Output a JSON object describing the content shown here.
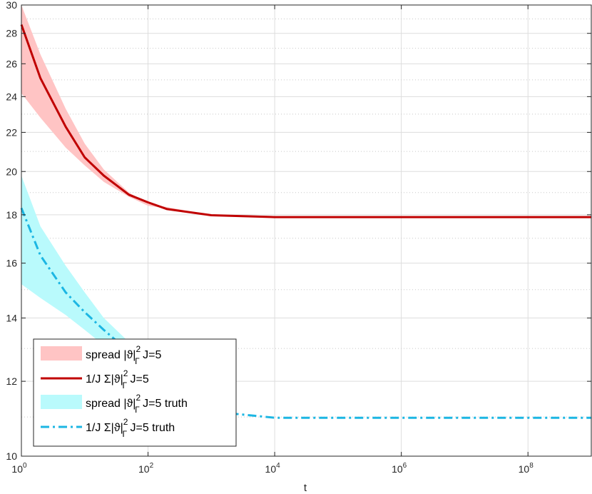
{
  "chart_data": {
    "type": "line",
    "xlabel": "t",
    "ylabel": "",
    "xscale": "log",
    "yscale": "log",
    "xlim": [
      1,
      1000000000
    ],
    "ylim": [
      10,
      30
    ],
    "grid": true,
    "x_ticks": [
      {
        "value": 1,
        "base": "10",
        "exp": "0"
      },
      {
        "value": 100,
        "base": "10",
        "exp": "2"
      },
      {
        "value": 10000,
        "base": "10",
        "exp": "4"
      },
      {
        "value": 1000000,
        "base": "10",
        "exp": "6"
      },
      {
        "value": 100000000,
        "base": "10",
        "exp": "8"
      }
    ],
    "y_ticks": [
      10,
      12,
      14,
      16,
      18,
      20,
      22,
      24,
      26,
      28,
      30
    ],
    "legend_position": "bottom-left",
    "series": [
      {
        "name": "spread |ϑ|²Γ J=5",
        "kind": "band",
        "color": "#ffc4c4",
        "x": [
          1,
          2,
          5,
          10,
          20,
          50,
          100,
          1000,
          10000,
          1000000000
        ],
        "lower": [
          24.2,
          22.8,
          21.2,
          20.3,
          19.5,
          18.8,
          18.4,
          17.98,
          17.9,
          17.9
        ],
        "upper": [
          30.0,
          26.6,
          23.3,
          21.4,
          20.1,
          19.0,
          18.5,
          17.98,
          17.9,
          17.9
        ]
      },
      {
        "name": "1/J Σ|ϑ|²Γ J=5",
        "kind": "line",
        "color": "#c00000",
        "dash": "",
        "x": [
          1,
          2,
          5,
          10,
          20,
          50,
          100,
          200,
          1000,
          10000,
          1000000000
        ],
        "y": [
          28.6,
          25.1,
          22.3,
          20.7,
          19.8,
          18.9,
          18.55,
          18.25,
          17.98,
          17.9,
          17.9
        ]
      },
      {
        "name": "spread |ϑ|²Γ J=5 truth",
        "kind": "band",
        "color": "#b9fafc",
        "x": [
          1,
          2,
          5,
          10,
          20,
          50,
          100
        ],
        "lower": [
          15.2,
          14.7,
          14.1,
          13.6,
          13.1,
          12.7,
          12.5
        ],
        "upper": [
          19.8,
          17.5,
          15.9,
          14.9,
          14.0,
          13.2,
          12.8
        ]
      },
      {
        "name": "1/J Σ|ϑ|²Γ J=5 truth",
        "kind": "line",
        "color": "#1cb6e3",
        "dash": "12,5,3,5",
        "x": [
          1,
          2,
          5,
          10,
          20,
          50,
          100,
          1000,
          10000,
          1000000000
        ],
        "y": [
          18.3,
          16.3,
          14.9,
          14.2,
          13.6,
          12.9,
          12.5,
          11.15,
          10.98,
          10.98
        ]
      }
    ],
    "legend": [
      {
        "pre": "spread |ϑ|",
        "sup": "2",
        "sub": "Γ",
        "post": " J=5"
      },
      {
        "pre": "1/J Σ|ϑ|",
        "sup": "2",
        "sub": "Γ",
        "post": " J=5"
      },
      {
        "pre": "spread |ϑ|",
        "sup": "2",
        "sub": "Γ",
        "post": " J=5 truth"
      },
      {
        "pre": "1/J Σ|ϑ|",
        "sup": "2",
        "sub": "Γ",
        "post": " J=5 truth"
      }
    ]
  }
}
